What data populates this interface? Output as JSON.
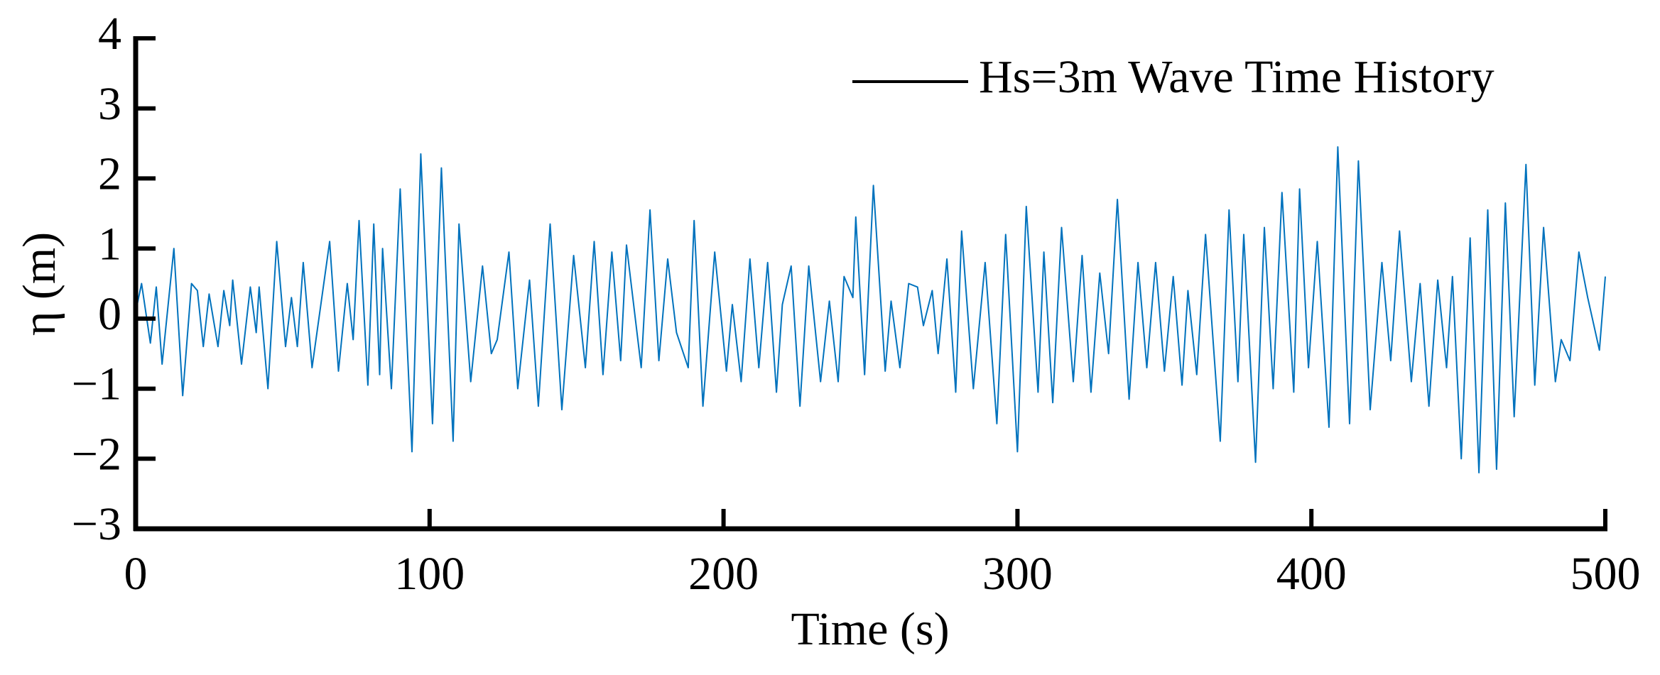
{
  "chart_data": {
    "type": "line",
    "xlabel": "Time (s)",
    "ylabel": "η (m)",
    "x": [
      0,
      2,
      5,
      7,
      9,
      13,
      16,
      19,
      21,
      23,
      25,
      28,
      30,
      32,
      33,
      36,
      39,
      41,
      42,
      45,
      48,
      51,
      53,
      55,
      57,
      60,
      63,
      66,
      69,
      72,
      74,
      76,
      79,
      81,
      83,
      84,
      87,
      90,
      94,
      97,
      101,
      104,
      108,
      110,
      114,
      118,
      121,
      123,
      127,
      130,
      134,
      137,
      141,
      145,
      149,
      153,
      156,
      159,
      162,
      165,
      167,
      172,
      175,
      178,
      181,
      184,
      188,
      190,
      193,
      197,
      201,
      203,
      206,
      209,
      212,
      215,
      218,
      220,
      223,
      226,
      229,
      233,
      236,
      239,
      241,
      244,
      245,
      248,
      251,
      255,
      257,
      260,
      263,
      266,
      268,
      271,
      273,
      276,
      279,
      281,
      285,
      289,
      293,
      296,
      300,
      303,
      307,
      309,
      312,
      315,
      319,
      322,
      325,
      328,
      331,
      334,
      338,
      341,
      344,
      347,
      350,
      353,
      356,
      358,
      361,
      364,
      369,
      372,
      375,
      377,
      381,
      384,
      387,
      390,
      394,
      396,
      399,
      402,
      406,
      409,
      413,
      416,
      420,
      424,
      427,
      430,
      434,
      437,
      440,
      443,
      446,
      448,
      451,
      454,
      457,
      460,
      463,
      466,
      469,
      471,
      473,
      476,
      479,
      483,
      485,
      488,
      491,
      494,
      498,
      500
    ],
    "series": [
      {
        "name": "Hs=3m Wave Time History",
        "color": "#0072bd",
        "values": [
          0.1,
          0.5,
          -0.35,
          0.45,
          -0.65,
          1.0,
          -1.1,
          0.5,
          0.4,
          -0.4,
          0.35,
          -0.4,
          0.4,
          -0.1,
          0.55,
          -0.65,
          0.45,
          -0.2,
          0.45,
          -1.0,
          1.1,
          -0.4,
          0.3,
          -0.4,
          0.8,
          -0.7,
          0.2,
          1.1,
          -0.75,
          0.5,
          -0.3,
          1.4,
          -0.95,
          1.35,
          -0.8,
          1.0,
          -1.0,
          1.85,
          -1.9,
          2.35,
          -1.5,
          2.15,
          -1.75,
          1.35,
          -0.9,
          0.75,
          -0.5,
          -0.3,
          0.95,
          -1.0,
          0.55,
          -1.25,
          1.35,
          -1.3,
          0.9,
          -0.7,
          1.1,
          -0.8,
          0.95,
          -0.6,
          1.05,
          -0.7,
          1.55,
          -0.6,
          0.85,
          -0.2,
          -0.7,
          1.4,
          -1.25,
          0.95,
          -0.75,
          0.2,
          -0.9,
          0.85,
          -0.7,
          0.8,
          -1.05,
          0.2,
          0.75,
          -1.25,
          0.75,
          -0.9,
          0.25,
          -0.9,
          0.6,
          0.3,
          1.45,
          -0.8,
          1.9,
          -0.75,
          0.25,
          -0.7,
          0.5,
          0.45,
          -0.1,
          0.4,
          -0.5,
          0.85,
          -1.05,
          1.25,
          -1.0,
          0.8,
          -1.5,
          1.2,
          -1.9,
          1.6,
          -1.05,
          0.95,
          -1.2,
          1.3,
          -0.9,
          0.9,
          -1.05,
          0.65,
          -0.5,
          1.7,
          -1.15,
          0.8,
          -0.7,
          0.8,
          -0.75,
          0.6,
          -0.95,
          0.4,
          -0.8,
          1.2,
          -1.75,
          1.55,
          -0.9,
          1.2,
          -2.05,
          1.3,
          -1.0,
          1.8,
          -1.05,
          1.85,
          -0.7,
          1.1,
          -1.55,
          2.45,
          -1.5,
          2.25,
          -1.3,
          0.8,
          -0.6,
          1.25,
          -0.9,
          0.5,
          -1.25,
          0.55,
          -0.7,
          0.6,
          -2.0,
          1.15,
          -2.2,
          1.55,
          -2.15,
          1.65,
          -1.4,
          0.4,
          2.2,
          -0.95,
          1.3,
          -0.9,
          -0.3,
          -0.6,
          0.95,
          0.3,
          -0.45,
          0.6
        ]
      }
    ],
    "xlim": [
      0,
      500
    ],
    "xticks": [
      0,
      100,
      200,
      300,
      400,
      500
    ],
    "ylim": [
      -3,
      4
    ],
    "yticks": [
      {
        "value": -3,
        "label": "−3"
      },
      {
        "value": -2,
        "label": "−2"
      },
      {
        "value": -1,
        "label": "−1"
      },
      0,
      1,
      2,
      3,
      4
    ],
    "legend": "upper right"
  }
}
